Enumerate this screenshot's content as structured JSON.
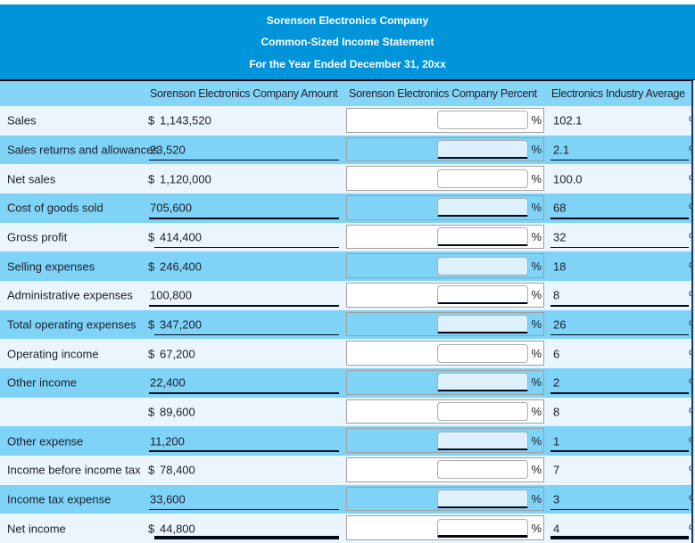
{
  "header": {
    "title_lines": [
      "Sorenson Electronics Company",
      "Common-Sized Income Statement",
      "For the Year Ended December 31, 20xx"
    ]
  },
  "columns": {
    "amount_header": "Sorenson Electronics Company Amount",
    "percent_header": "Sorenson Electronics Company Percent",
    "industry_header": "Electronics Industry Average"
  },
  "currency_symbol": "$",
  "percent_symbol": "%",
  "rows": [
    {
      "label": "Sales",
      "dollar": true,
      "amount": "1,143,520",
      "underline": "none",
      "shade": "light",
      "input_value": "",
      "industry": "102.1"
    },
    {
      "label": "Sales returns and allowances",
      "dollar": false,
      "amount": "23,520",
      "underline": "single",
      "shade": "blue",
      "input_value": "",
      "industry": "2.1"
    },
    {
      "label": "Net sales",
      "dollar": true,
      "amount": "1,120,000",
      "underline": "none",
      "shade": "light",
      "input_value": "",
      "industry": "100.0"
    },
    {
      "label": "Cost of goods sold",
      "dollar": false,
      "amount": "705,600",
      "underline": "single",
      "shade": "blue",
      "input_value": "",
      "industry": "68"
    },
    {
      "label": "Gross profit",
      "dollar": true,
      "amount": "414,400",
      "underline": "single",
      "shade": "light",
      "input_value": "",
      "industry": "32"
    },
    {
      "label": "Selling expenses",
      "dollar": true,
      "amount": "246,400",
      "underline": "none",
      "shade": "blue",
      "input_value": "",
      "industry": "18"
    },
    {
      "label": "Administrative expenses",
      "dollar": false,
      "amount": "100,800",
      "underline": "single",
      "shade": "light",
      "input_value": "",
      "industry": "8"
    },
    {
      "label": "Total operating expenses",
      "dollar": true,
      "amount": "347,200",
      "underline": "single",
      "shade": "blue",
      "input_value": "",
      "industry": "26"
    },
    {
      "label": "Operating income",
      "dollar": true,
      "amount": "67,200",
      "underline": "none",
      "shade": "light",
      "input_value": "",
      "industry": "6"
    },
    {
      "label": "Other income",
      "dollar": false,
      "amount": "22,400",
      "underline": "single",
      "shade": "blue",
      "input_value": "",
      "industry": "2"
    },
    {
      "label": "",
      "dollar": true,
      "amount": "89,600",
      "underline": "none",
      "shade": "light",
      "input_value": "",
      "industry": "8"
    },
    {
      "label": "Other expense",
      "dollar": false,
      "amount": "11,200",
      "underline": "single",
      "shade": "blue",
      "input_value": "",
      "industry": "1"
    },
    {
      "label": "Income before income tax",
      "dollar": true,
      "amount": "78,400",
      "underline": "none",
      "shade": "light",
      "input_value": "",
      "industry": "7"
    },
    {
      "label": "Income tax expense",
      "dollar": false,
      "amount": "33,600",
      "underline": "single",
      "shade": "blue",
      "input_value": "",
      "industry": "3"
    },
    {
      "label": "Net income",
      "dollar": true,
      "amount": "44,800",
      "underline": "double",
      "shade": "light",
      "input_value": "",
      "industry": "4"
    }
  ],
  "colors": {
    "header_bg": "#0094db",
    "colhead_bg": "#85d5f7",
    "blue_row": "#7ed3f7",
    "light_row": "#ebf5fd",
    "divider": "#1f3864",
    "underline": "#02081a",
    "text": "#20202e"
  }
}
